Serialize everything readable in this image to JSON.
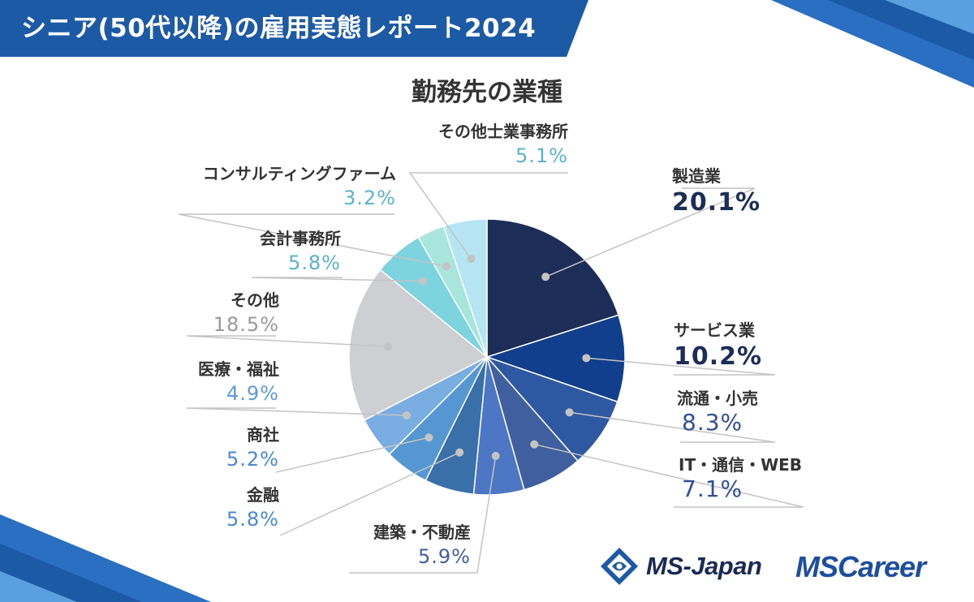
{
  "header": {
    "title": "シニア(50代以降)の雇用実態レポート2024"
  },
  "chart_data": {
    "type": "pie",
    "title": "勤務先の業種",
    "slices": [
      {
        "label": "製造業",
        "value": 20.1,
        "display": "20.1%",
        "color": "#1c2d58",
        "text_color": "#1c2d58"
      },
      {
        "label": "サービス業",
        "value": 10.2,
        "display": "10.2%",
        "color": "#123e8e",
        "text_color": "#1c2d58"
      },
      {
        "label": "流通・小売",
        "value": 8.3,
        "display": "8.3%",
        "color": "#2f58a3",
        "text_color": "#2f4f98"
      },
      {
        "label": "IT・通信・WEB",
        "value": 7.1,
        "display": "7.1%",
        "color": "#3f5f9e",
        "text_color": "#2f4f98"
      },
      {
        "label": "建築・不動産",
        "value": 5.9,
        "display": "5.9%",
        "color": "#4d76c4",
        "text_color": "#3f5f9e"
      },
      {
        "label": "金融",
        "value": 5.8,
        "display": "5.8%",
        "color": "#3a70a9",
        "text_color": "#4a88cf"
      },
      {
        "label": "商社",
        "value": 5.2,
        "display": "5.2%",
        "color": "#5597d3",
        "text_color": "#4a88cf"
      },
      {
        "label": "医療・福祉",
        "value": 4.9,
        "display": "4.9%",
        "color": "#7aaee3",
        "text_color": "#5f9ad8"
      },
      {
        "label": "その他",
        "value": 18.5,
        "display": "18.5%",
        "color": "#cdcfd3",
        "text_color": "#999999"
      },
      {
        "label": "会計事務所",
        "value": 5.8,
        "display": "5.8%",
        "color": "#7dd3de",
        "text_color": "#5ab4c8"
      },
      {
        "label": "コンサルティングファーム",
        "value": 3.2,
        "display": "3.2%",
        "color": "#a8e5dc",
        "text_color": "#5ab4c8"
      },
      {
        "label": "その他士業事務所",
        "value": 5.1,
        "display": "5.1%",
        "color": "#b5e4f2",
        "text_color": "#5ab4c8"
      }
    ]
  },
  "logos": {
    "msjapan": "MS-Japan",
    "mscareer": "MSCareer"
  }
}
